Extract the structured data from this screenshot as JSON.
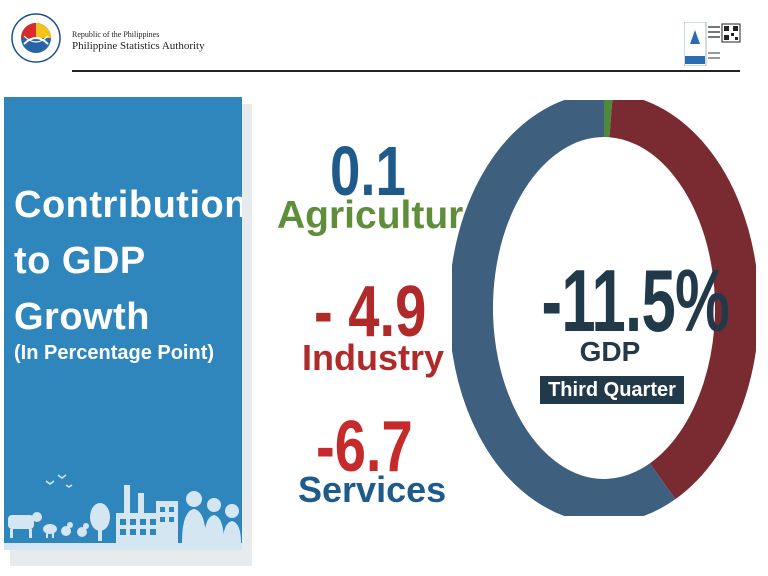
{
  "header": {
    "republic": "Republic of the Philippines",
    "agency": "Philippine Statistics Authority"
  },
  "panel": {
    "title_lines": [
      "Contribution",
      "to GDP",
      "Growth"
    ],
    "subtitle": "(In Percentage Point)"
  },
  "chart_data": {
    "type": "pie",
    "center_value": "-11.5%",
    "center_label": "GDP",
    "center_badge": "Third Quarter",
    "series": [
      {
        "name": "Agriculture",
        "display": "0.1",
        "value": 0.1,
        "color": "#4f8a3c"
      },
      {
        "name": "Industry",
        "display": "- 4.9",
        "value": -4.9,
        "color": "#7a2b31"
      },
      {
        "name": "Services",
        "display": "-6.7",
        "value": -6.7,
        "color": "#3e5f7e"
      }
    ]
  },
  "colors": {
    "panel_blue": "#2f86bd",
    "agri_value": "#1f5b8a",
    "agri_label": "#5e8e3a",
    "industry": "#b02a2a",
    "services_value": "#c62a2a",
    "services_label": "#1f5b8a",
    "dark": "#22394a"
  }
}
